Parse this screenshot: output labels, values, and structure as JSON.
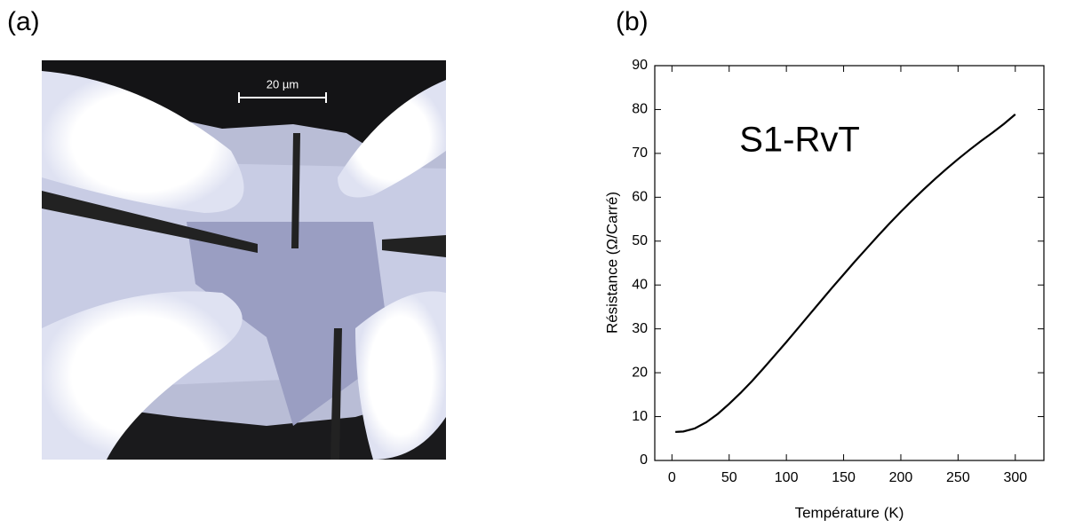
{
  "panels": {
    "a": {
      "label": "(a)",
      "scale_bar": "20 µm"
    },
    "b": {
      "label": "(b)"
    }
  },
  "chart_data": {
    "type": "line",
    "annotation": "S1-RvT",
    "x_label": "Température (K)",
    "y_label": "Résistance (Ω/Carré)",
    "xlim": [
      -15,
      325
    ],
    "ylim": [
      0,
      90
    ],
    "xticks": [
      0,
      50,
      100,
      150,
      200,
      250,
      300
    ],
    "yticks": [
      0,
      10,
      20,
      30,
      40,
      50,
      60,
      70,
      80,
      90
    ],
    "x": [
      3,
      10,
      20,
      30,
      40,
      50,
      60,
      70,
      80,
      90,
      100,
      110,
      120,
      130,
      140,
      150,
      160,
      170,
      180,
      190,
      200,
      210,
      220,
      230,
      240,
      250,
      260,
      270,
      280,
      290,
      300
    ],
    "series": [
      {
        "color": "#000000",
        "values": [
          6.5,
          6.6,
          7.3,
          8.7,
          10.6,
          12.9,
          15.4,
          18.1,
          21,
          24,
          27,
          30.1,
          33.2,
          36.3,
          39.4,
          42.4,
          45.4,
          48.3,
          51.2,
          54,
          56.7,
          59.3,
          61.8,
          64.2,
          66.5,
          68.7,
          70.8,
          72.8,
          74.7,
          76.7,
          78.9
        ]
      }
    ]
  }
}
